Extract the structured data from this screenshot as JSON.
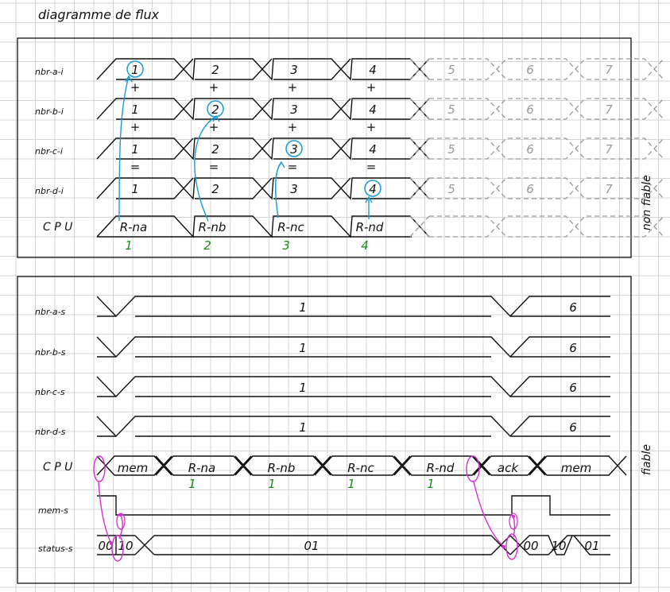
{
  "title": "diagramme de flux",
  "colors": {
    "ink": "#111111",
    "grid": "#c9c9c9",
    "ghost": "#9a9a9a",
    "green": "#1d8a1d",
    "blue": "#1a9ad6",
    "magenta": "#d62fd6"
  },
  "top_panel": {
    "side_label": "non fiable",
    "signals": [
      {
        "label": "nbr-a-i",
        "values": [
          "1",
          "2",
          "3",
          "4"
        ],
        "ghost_values": [
          "5",
          "6",
          "7"
        ],
        "circled": 0
      },
      {
        "label": "nbr-b-i",
        "values": [
          "1",
          "2",
          "3",
          "4"
        ],
        "ghost_values": [
          "5",
          "6",
          "7"
        ],
        "circled": 1
      },
      {
        "label": "nbr-c-i",
        "values": [
          "1",
          "2",
          "3",
          "4"
        ],
        "ghost_values": [
          "5",
          "6",
          "7"
        ],
        "circled": 2
      },
      {
        "label": "nbr-d-i",
        "values": [
          "1",
          "2",
          "3",
          "4"
        ],
        "ghost_values": [
          "5",
          "6",
          "7"
        ],
        "circled": 3
      }
    ],
    "operators": [
      {
        "row": 0,
        "symbol": "+"
      },
      {
        "row": 1,
        "symbol": "+"
      },
      {
        "row": 2,
        "symbol": "="
      }
    ],
    "cpu": {
      "label": "C P U",
      "values": [
        "R-na",
        "R-nb",
        "R-nc",
        "R-nd"
      ],
      "cycles": [
        "1",
        "2",
        "3",
        "4"
      ]
    }
  },
  "bottom_panel": {
    "side_label": "fiable",
    "signals": [
      {
        "label": "nbr-a-s",
        "first": "1",
        "second": "6"
      },
      {
        "label": "nbr-b-s",
        "first": "1",
        "second": "6"
      },
      {
        "label": "nbr-c-s",
        "first": "1",
        "second": "6"
      },
      {
        "label": "nbr-d-s",
        "first": "1",
        "second": "6"
      }
    ],
    "cpu": {
      "label": "C P U",
      "values": [
        "mem",
        "R-na",
        "R-nb",
        "R-nc",
        "R-nd",
        "ack",
        "mem"
      ],
      "cycles": [
        "1",
        "1",
        "1",
        "1"
      ]
    },
    "mem": {
      "label": "mem-s"
    },
    "status": {
      "label": "status-s",
      "values": [
        "00",
        "10",
        "01",
        "00",
        "10",
        "01"
      ]
    }
  }
}
